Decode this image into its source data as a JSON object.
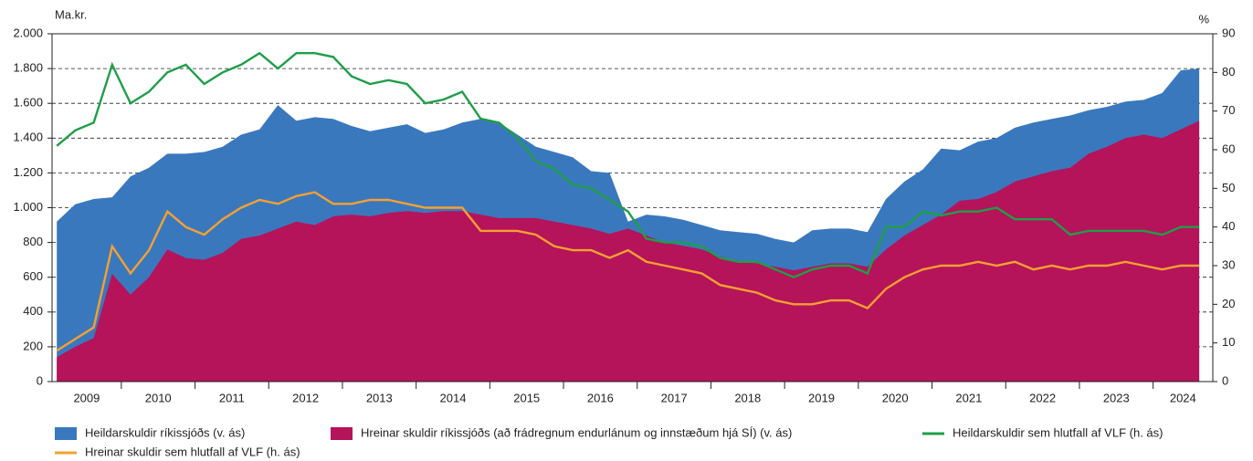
{
  "chart_data": {
    "type": "area-line",
    "y_unit": "Ma.kr.",
    "y2_unit": "%",
    "categories": [
      "2009",
      "2010",
      "2011",
      "2012",
      "2013",
      "2014",
      "2015",
      "2016",
      "2017",
      "2018",
      "2019",
      "2020",
      "2021",
      "2022",
      "2023",
      "2024"
    ],
    "xlim": [
      2009.06,
      2024.81
    ],
    "x": [
      2009.125,
      2009.375,
      2009.625,
      2009.875,
      2010.125,
      2010.375,
      2010.625,
      2010.875,
      2011.125,
      2011.375,
      2011.625,
      2011.875,
      2012.125,
      2012.375,
      2012.625,
      2012.875,
      2013.125,
      2013.375,
      2013.625,
      2013.875,
      2014.125,
      2014.375,
      2014.625,
      2014.875,
      2015.125,
      2015.375,
      2015.625,
      2015.875,
      2016.125,
      2016.375,
      2016.625,
      2016.875,
      2017.125,
      2017.375,
      2017.625,
      2017.875,
      2018.125,
      2018.375,
      2018.625,
      2018.875,
      2019.125,
      2019.375,
      2019.625,
      2019.875,
      2020.125,
      2020.375,
      2020.625,
      2020.875,
      2021.125,
      2021.375,
      2021.625,
      2021.875,
      2022.125,
      2022.375,
      2022.625,
      2022.875,
      2023.125,
      2023.375,
      2023.625,
      2023.875,
      2024.125,
      2024.375,
      2024.625
    ],
    "ylim": [
      0,
      2000
    ],
    "yticks": [
      0,
      200,
      400,
      600,
      800,
      {
        "value": 1000,
        "label": "1.000"
      },
      {
        "value": 1200,
        "label": "1.200"
      },
      {
        "value": 1400,
        "label": "1.400"
      },
      {
        "value": 1600,
        "label": "1.600"
      },
      {
        "value": 1800,
        "label": "1.800"
      },
      {
        "value": 2000,
        "label": "2.000"
      }
    ],
    "y2lim": [
      0,
      90
    ],
    "y2ticks": [
      0,
      10,
      20,
      30,
      40,
      50,
      60,
      70,
      80,
      90
    ],
    "grid": true,
    "series": [
      {
        "name": "Heildarskuldir ríkissjóðs (v. ás)",
        "kind": "area",
        "color": "#3a78be",
        "values": [
          920,
          1020,
          1050,
          1060,
          1180,
          1230,
          1310,
          1310,
          1320,
          1350,
          1420,
          1450,
          1590,
          1500,
          1520,
          1510,
          1470,
          1440,
          1460,
          1480,
          1430,
          1450,
          1490,
          1510,
          1490,
          1420,
          1350,
          1320,
          1290,
          1210,
          1200,
          920,
          960,
          950,
          930,
          900,
          870,
          860,
          850,
          820,
          800,
          870,
          880,
          880,
          860,
          1050,
          1150,
          1220,
          1340,
          1330,
          1380,
          1400,
          1460,
          1490,
          1510,
          1530,
          1560,
          1580,
          1610,
          1620,
          1660,
          1790,
          1800
        ]
      },
      {
        "name": "Hreinar skuldir ríkissjóðs (að frádregnum endurlánum og innstæðum hjá SÍ) (v. ás)",
        "kind": "area",
        "color": "#b5135a",
        "values": [
          140,
          200,
          250,
          620,
          500,
          600,
          760,
          710,
          700,
          740,
          820,
          840,
          880,
          920,
          900,
          950,
          960,
          950,
          970,
          980,
          970,
          980,
          980,
          960,
          940,
          940,
          940,
          920,
          900,
          880,
          850,
          880,
          840,
          800,
          780,
          760,
          720,
          690,
          680,
          660,
          640,
          660,
          680,
          680,
          660,
          760,
          840,
          900,
          960,
          1040,
          1050,
          1090,
          1150,
          1180,
          1210,
          1230,
          1310,
          1350,
          1400,
          1420,
          1400,
          1450,
          1500
        ]
      },
      {
        "name": "Heildarskuldir sem hlutfall af VLF (h. ás)",
        "kind": "line",
        "axis": "y2",
        "color": "#1f9e48",
        "values": [
          61,
          65,
          67,
          82,
          72,
          75,
          80,
          82,
          77,
          80,
          82,
          85,
          81,
          85,
          85,
          84,
          79,
          77,
          78,
          77,
          72,
          73,
          75,
          68,
          67,
          63,
          57,
          55,
          51,
          50,
          47,
          44,
          37,
          36,
          36,
          35,
          32,
          31,
          31,
          29,
          27,
          29,
          30,
          30,
          28,
          40,
          40,
          44,
          43,
          44,
          44,
          45,
          42,
          42,
          42,
          38,
          39,
          39,
          39,
          39,
          38,
          40,
          40
        ]
      },
      {
        "name": "Hreinar skuldir sem hlutfall af VLF (h. ás)",
        "kind": "line",
        "axis": "y2",
        "color": "#f5a031",
        "values": [
          8,
          11,
          14,
          35,
          28,
          34,
          44,
          40,
          38,
          42,
          45,
          47,
          46,
          48,
          49,
          46,
          46,
          47,
          47,
          46,
          45,
          45,
          45,
          39,
          39,
          39,
          38,
          35,
          34,
          34,
          32,
          34,
          31,
          30,
          29,
          28,
          25,
          24,
          23,
          21,
          20,
          20,
          21,
          21,
          19,
          24,
          27,
          29,
          30,
          30,
          31,
          30,
          31,
          29,
          30,
          29,
          30,
          30,
          31,
          30,
          29,
          30,
          30
        ]
      }
    ]
  }
}
